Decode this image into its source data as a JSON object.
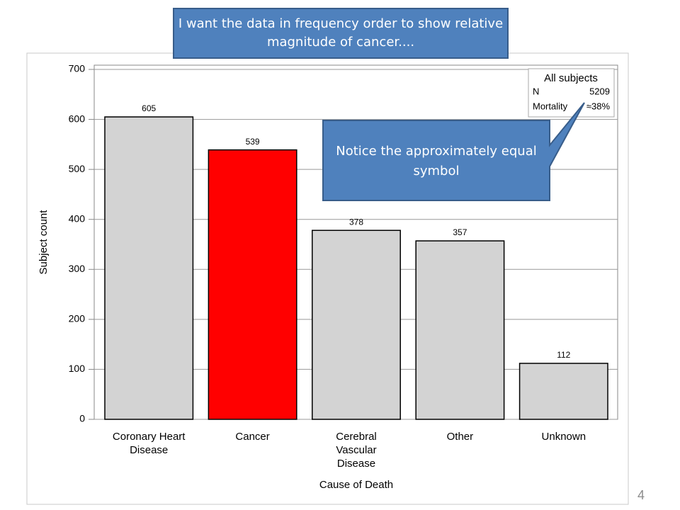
{
  "chart_data": {
    "type": "bar",
    "categories": [
      "Coronary Heart Disease",
      "Cancer",
      "Cerebral Vascular Disease",
      "Other",
      "Unknown"
    ],
    "values": [
      605,
      539,
      378,
      357,
      112
    ],
    "colors": [
      "#d3d3d3",
      "#ff0000",
      "#d3d3d3",
      "#d3d3d3",
      "#d3d3d3"
    ],
    "x_label": "Cause of Death",
    "y_label": "Subject count",
    "ylim": [
      0,
      700
    ],
    "yticks": [
      0,
      100,
      200,
      300,
      400,
      500,
      600,
      700
    ],
    "grid": true,
    "inset": {
      "title": "All subjects",
      "rows": [
        [
          "N",
          "5209"
        ],
        [
          "Mortality",
          "≈38%"
        ]
      ]
    },
    "annotations": [
      "I want the data in frequency order to show relative magnitude of cancer....",
      "Notice the approximately equal symbol"
    ]
  },
  "slide_number": "4"
}
